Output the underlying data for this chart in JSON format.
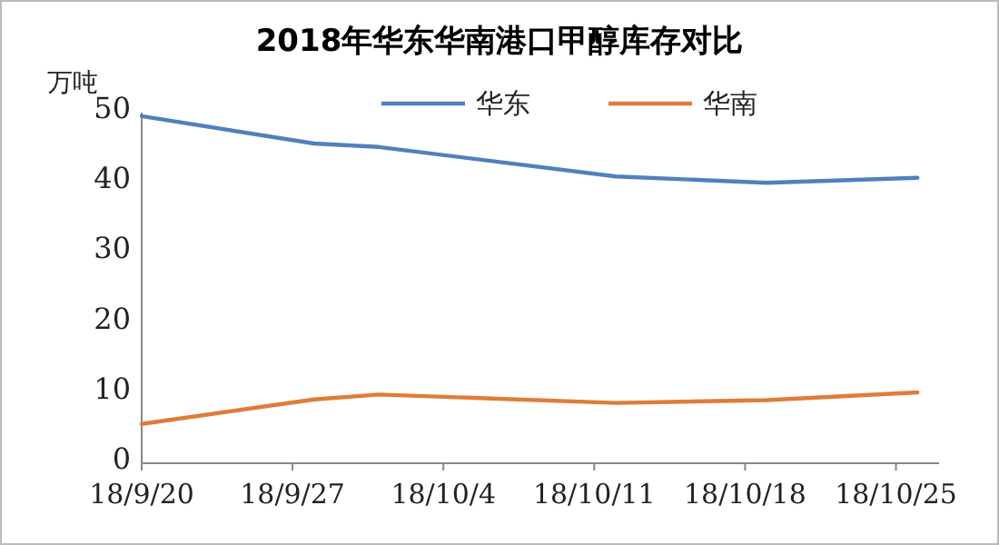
{
  "chart_data": {
    "type": "line",
    "title": "2018年华东华南港口甲醇库存对比",
    "ylabel": "万吨",
    "x": [
      "2018-09-20",
      "2018-09-28",
      "2018-10-01",
      "2018-10-12",
      "2018-10-19",
      "2018-10-26"
    ],
    "series": [
      {
        "name": "华东",
        "color": "#4f81bd",
        "values": [
          49.5,
          45.6,
          45.1,
          40.9,
          40.0,
          40.7
        ]
      },
      {
        "name": "华南",
        "color": "#e07b39",
        "values": [
          5.6,
          9.1,
          9.8,
          8.6,
          9.0,
          10.1
        ]
      }
    ],
    "xlim": [
      "2018-09-20",
      "2018-10-27"
    ],
    "xticks": [
      {
        "value": "2018-09-20",
        "label": "18/9/20"
      },
      {
        "value": "2018-09-27",
        "label": "18/9/27"
      },
      {
        "value": "2018-10-04",
        "label": "18/10/4"
      },
      {
        "value": "2018-10-11",
        "label": "18/10/11"
      },
      {
        "value": "2018-10-18",
        "label": "18/10/18"
      },
      {
        "value": "2018-10-25",
        "label": "18/10/25"
      }
    ],
    "ylim": [
      0,
      50
    ],
    "yticks": [
      0,
      10,
      20,
      30,
      40,
      50
    ],
    "legend": "top",
    "grid": false,
    "marker": "none",
    "line_style": "solid"
  }
}
